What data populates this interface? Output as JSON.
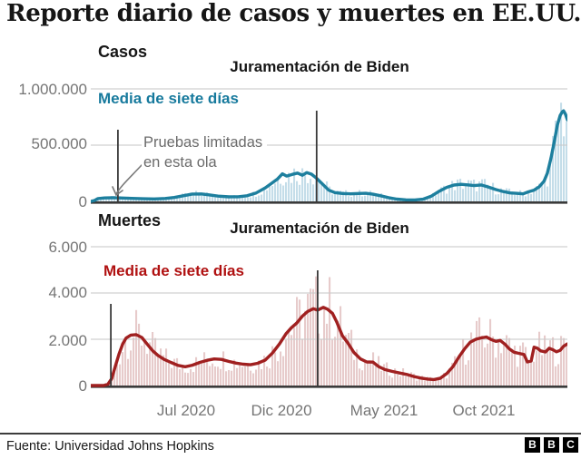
{
  "title": "Reporte diario de casos y muertes en EE.UU.",
  "footer": {
    "source": "Fuente: Universidad Johns Hopkins",
    "logo_letters": [
      "B",
      "B",
      "C"
    ]
  },
  "chart_data": {
    "type": "line-with-daily-bars",
    "xticks": [
      "Jul 2020",
      "Dic 2020",
      "May 2021",
      "Oct 2021"
    ],
    "legend_position": "top-left-inside",
    "grid": "horizontal",
    "daily_bars": {
      "min_multiplier": 0.55,
      "max_multiplier": 1.5,
      "note": "daily values shown as thin bars around the 7-day average"
    },
    "charts": [
      {
        "name": "Casos",
        "legend": "Media de siete días",
        "ylim": [
          0,
          1000000
        ],
        "yticks": [
          {
            "value": 1000000,
            "label": "1.000.000"
          },
          {
            "value": 500000,
            "label": "500.000"
          },
          {
            "value": 0,
            "label": "0"
          }
        ],
        "annotation": {
          "line1": "Pruebas limitadas",
          "line2": "en esta ola"
        },
        "events": [
          {
            "name": "testing-marker",
            "t": 0.057,
            "label": ""
          },
          {
            "name": "biden-inauguration",
            "t": 0.474,
            "label": "Juramentación de Biden"
          }
        ],
        "colors": {
          "line": "#1d7f9e",
          "bars": "#c4dde9",
          "label": "#177a9d"
        },
        "series": [
          [
            0,
            0
          ],
          [
            0.008,
            8000
          ],
          [
            0.015,
            25000
          ],
          [
            0.029,
            31000
          ],
          [
            0.048,
            32000
          ],
          [
            0.067,
            30000
          ],
          [
            0.086,
            27000
          ],
          [
            0.11,
            23000
          ],
          [
            0.133,
            22000
          ],
          [
            0.156,
            26000
          ],
          [
            0.175,
            35000
          ],
          [
            0.194,
            50000
          ],
          [
            0.213,
            65000
          ],
          [
            0.232,
            66000
          ],
          [
            0.248,
            58000
          ],
          [
            0.267,
            47000
          ],
          [
            0.29,
            40000
          ],
          [
            0.309,
            41000
          ],
          [
            0.328,
            50000
          ],
          [
            0.347,
            75000
          ],
          [
            0.366,
            120000
          ],
          [
            0.381,
            165000
          ],
          [
            0.392,
            200000
          ],
          [
            0.402,
            245000
          ],
          [
            0.411,
            225000
          ],
          [
            0.423,
            240000
          ],
          [
            0.434,
            252000
          ],
          [
            0.444,
            232000
          ],
          [
            0.453,
            256000
          ],
          [
            0.463,
            242000
          ],
          [
            0.474,
            205000
          ],
          [
            0.486,
            155000
          ],
          [
            0.499,
            100000
          ],
          [
            0.512,
            78000
          ],
          [
            0.528,
            70000
          ],
          [
            0.545,
            67000
          ],
          [
            0.562,
            70000
          ],
          [
            0.577,
            72000
          ],
          [
            0.592,
            64000
          ],
          [
            0.608,
            50000
          ],
          [
            0.625,
            33000
          ],
          [
            0.642,
            20000
          ],
          [
            0.661,
            14000
          ],
          [
            0.68,
            13000
          ],
          [
            0.697,
            19000
          ],
          [
            0.714,
            45000
          ],
          [
            0.731,
            90000
          ],
          [
            0.747,
            125000
          ],
          [
            0.762,
            145000
          ],
          [
            0.777,
            152000
          ],
          [
            0.79,
            147000
          ],
          [
            0.804,
            140000
          ],
          [
            0.819,
            146000
          ],
          [
            0.834,
            128000
          ],
          [
            0.85,
            105000
          ],
          [
            0.865,
            88000
          ],
          [
            0.88,
            75000
          ],
          [
            0.895,
            71000
          ],
          [
            0.907,
            67000
          ],
          [
            0.918,
            85000
          ],
          [
            0.93,
            100000
          ],
          [
            0.941,
            130000
          ],
          [
            0.951,
            180000
          ],
          [
            0.958,
            250000
          ],
          [
            0.966,
            390000
          ],
          [
            0.973,
            540000
          ],
          [
            0.979,
            680000
          ],
          [
            0.985,
            765000
          ],
          [
            0.99,
            800000
          ],
          [
            0.992,
            805000
          ],
          [
            0.996,
            775000
          ],
          [
            1,
            725000
          ]
        ]
      },
      {
        "name": "Muertes",
        "legend": "Media de siete días",
        "ylim": [
          0,
          6000
        ],
        "yticks": [
          {
            "value": 6000,
            "label": "6.000"
          },
          {
            "value": 4000,
            "label": "4.000"
          },
          {
            "value": 2000,
            "label": "2.000"
          },
          {
            "value": 0,
            "label": "0"
          }
        ],
        "events": [
          {
            "name": "start-marker",
            "t": 0.042,
            "label": ""
          },
          {
            "name": "biden-inauguration",
            "t": 0.476,
            "label": "Juramentación de Biden"
          }
        ],
        "colors": {
          "line": "#a02020",
          "bars": "#e7cbcb",
          "label": "#b01111"
        },
        "series": [
          [
            0,
            0
          ],
          [
            0.027,
            0
          ],
          [
            0.036,
            60
          ],
          [
            0.044,
            300
          ],
          [
            0.051,
            800
          ],
          [
            0.059,
            1350
          ],
          [
            0.067,
            1800
          ],
          [
            0.074,
            2050
          ],
          [
            0.084,
            2180
          ],
          [
            0.095,
            2200
          ],
          [
            0.107,
            2080
          ],
          [
            0.118,
            1800
          ],
          [
            0.13,
            1500
          ],
          [
            0.141,
            1300
          ],
          [
            0.154,
            1130
          ],
          [
            0.168,
            1000
          ],
          [
            0.183,
            870
          ],
          [
            0.198,
            810
          ],
          [
            0.213,
            880
          ],
          [
            0.229,
            1000
          ],
          [
            0.244,
            1090
          ],
          [
            0.259,
            1150
          ],
          [
            0.274,
            1130
          ],
          [
            0.29,
            1040
          ],
          [
            0.305,
            970
          ],
          [
            0.32,
            920
          ],
          [
            0.335,
            900
          ],
          [
            0.35,
            960
          ],
          [
            0.366,
            1100
          ],
          [
            0.381,
            1400
          ],
          [
            0.396,
            1800
          ],
          [
            0.41,
            2250
          ],
          [
            0.421,
            2500
          ],
          [
            0.432,
            2700
          ],
          [
            0.444,
            3000
          ],
          [
            0.455,
            3200
          ],
          [
            0.467,
            3320
          ],
          [
            0.476,
            3260
          ],
          [
            0.488,
            3380
          ],
          [
            0.497,
            3300
          ],
          [
            0.507,
            3120
          ],
          [
            0.516,
            2750
          ],
          [
            0.528,
            2150
          ],
          [
            0.539,
            1850
          ],
          [
            0.552,
            1430
          ],
          [
            0.566,
            1150
          ],
          [
            0.579,
            1020
          ],
          [
            0.592,
            1010
          ],
          [
            0.604,
            820
          ],
          [
            0.617,
            690
          ],
          [
            0.632,
            610
          ],
          [
            0.648,
            540
          ],
          [
            0.663,
            480
          ],
          [
            0.678,
            390
          ],
          [
            0.693,
            320
          ],
          [
            0.707,
            280
          ],
          [
            0.72,
            260
          ],
          [
            0.733,
            310
          ],
          [
            0.747,
            520
          ],
          [
            0.76,
            820
          ],
          [
            0.773,
            1250
          ],
          [
            0.785,
            1600
          ],
          [
            0.796,
            1870
          ],
          [
            0.808,
            2000
          ],
          [
            0.819,
            2060
          ],
          [
            0.83,
            2100
          ],
          [
            0.84,
            1990
          ],
          [
            0.85,
            1910
          ],
          [
            0.859,
            1950
          ],
          [
            0.869,
            1790
          ],
          [
            0.878,
            1590
          ],
          [
            0.888,
            1440
          ],
          [
            0.899,
            1390
          ],
          [
            0.909,
            1340
          ],
          [
            0.916,
            1020
          ],
          [
            0.924,
            1060
          ],
          [
            0.93,
            1660
          ],
          [
            0.937,
            1610
          ],
          [
            0.944,
            1500
          ],
          [
            0.954,
            1450
          ],
          [
            0.962,
            1610
          ],
          [
            0.97,
            1540
          ],
          [
            0.977,
            1460
          ],
          [
            0.985,
            1520
          ],
          [
            0.992,
            1700
          ],
          [
            1,
            1800
          ]
        ]
      }
    ]
  }
}
